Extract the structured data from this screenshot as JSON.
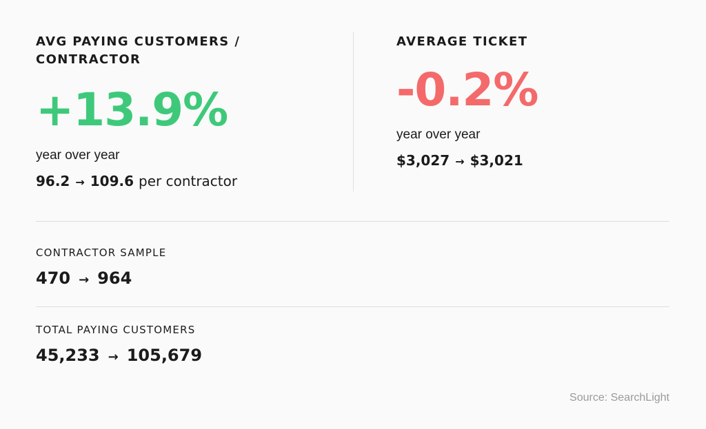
{
  "colors": {
    "positive": "#3ec97a",
    "negative": "#f46a6a"
  },
  "left_card": {
    "heading_line1": "AVG PAYING CUSTOMERS /",
    "heading_line2": "CONTRACTOR",
    "big_value": "+13.9%",
    "period": "year over year",
    "from": "96.2",
    "to": "109.6",
    "suffix": "per contractor"
  },
  "right_card": {
    "heading": "AVERAGE TICKET",
    "big_value": "-0.2%",
    "period": "year over year",
    "from": "$3,027",
    "to": "$3,021"
  },
  "contractor_sample": {
    "label": "CONTRACTOR SAMPLE",
    "from": "470",
    "to": "964"
  },
  "total_paying_customers": {
    "label": "TOTAL PAYING CUSTOMERS",
    "from": "45,233",
    "to": "105,679"
  },
  "arrow_glyph": "→",
  "source": "Source: SearchLight"
}
